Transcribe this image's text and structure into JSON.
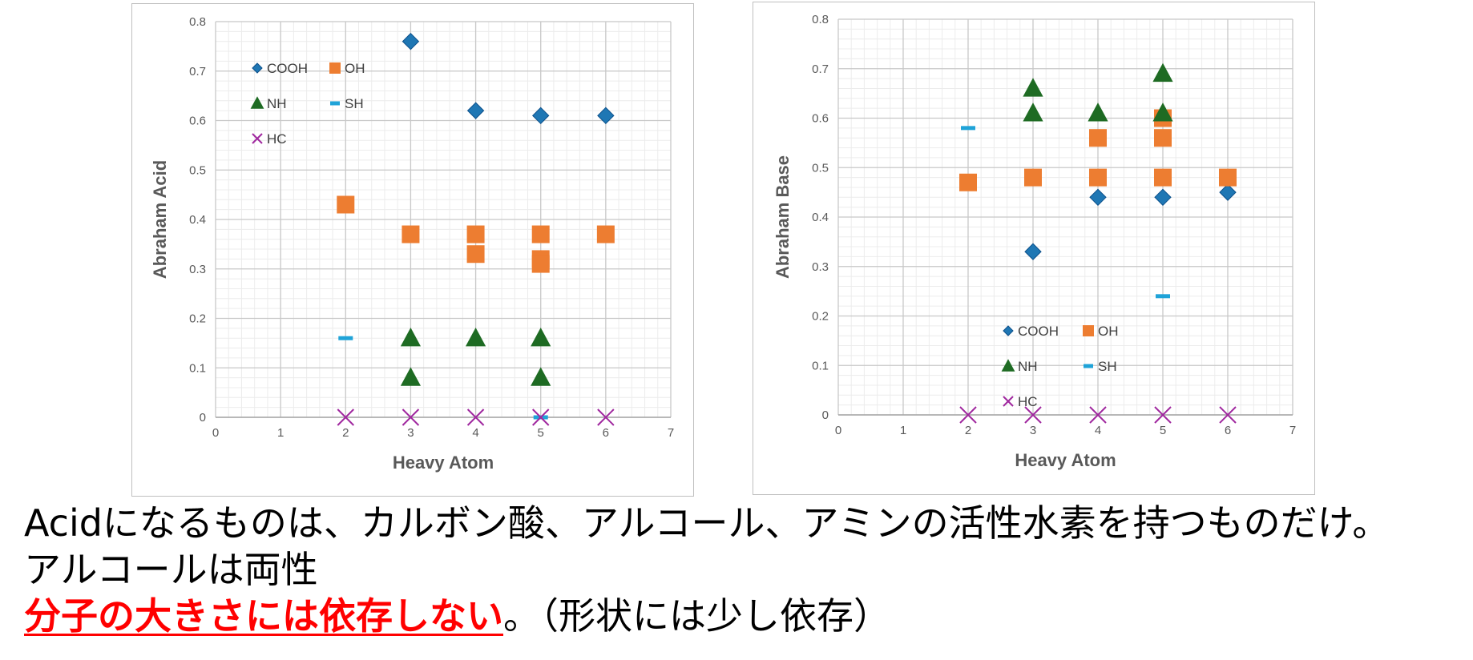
{
  "chart_data": [
    {
      "type": "scatter",
      "title": "",
      "xlabel": "Heavy Atom",
      "ylabel": "Abraham Acid",
      "xlim": [
        0,
        7
      ],
      "ylim": [
        0,
        0.8
      ],
      "x_ticks": [
        "0",
        "1",
        "2",
        "3",
        "4",
        "5",
        "6",
        "7"
      ],
      "y_ticks": [
        "0",
        "0.1",
        "0.2",
        "0.3",
        "0.4",
        "0.5",
        "0.6",
        "0.7",
        "0.8"
      ],
      "grid": true,
      "legend_position": "top-left",
      "series": [
        {
          "name": "COOH",
          "marker": "diamond",
          "color": "#1f77b4",
          "points": [
            [
              3,
              0.76
            ],
            [
              4,
              0.62
            ],
            [
              5,
              0.61
            ],
            [
              6,
              0.61
            ]
          ]
        },
        {
          "name": "OH",
          "marker": "square",
          "color": "#ed7d31",
          "points": [
            [
              2,
              0.43
            ],
            [
              3,
              0.37
            ],
            [
              4,
              0.37
            ],
            [
              4,
              0.33
            ],
            [
              5,
              0.37
            ],
            [
              5,
              0.32
            ],
            [
              5,
              0.31
            ],
            [
              6,
              0.37
            ]
          ]
        },
        {
          "name": "NH",
          "marker": "triangle",
          "color": "#1e6b23",
          "points": [
            [
              3,
              0.16
            ],
            [
              3,
              0.08
            ],
            [
              4,
              0.16
            ],
            [
              5,
              0.16
            ],
            [
              5,
              0.08
            ]
          ]
        },
        {
          "name": "SH",
          "marker": "dash",
          "color": "#1fa3d8",
          "points": [
            [
              2,
              0.16
            ],
            [
              5,
              0.0
            ]
          ]
        },
        {
          "name": "HC",
          "marker": "x",
          "color": "#a0289f",
          "points": [
            [
              2,
              0
            ],
            [
              3,
              0
            ],
            [
              4,
              0
            ],
            [
              5,
              0
            ],
            [
              6,
              0
            ]
          ]
        }
      ]
    },
    {
      "type": "scatter",
      "title": "",
      "xlabel": "Heavy Atom",
      "ylabel": "Abraham Base",
      "xlim": [
        0,
        7
      ],
      "ylim": [
        0,
        0.8
      ],
      "x_ticks": [
        "0",
        "1",
        "2",
        "3",
        "4",
        "5",
        "6",
        "7"
      ],
      "y_ticks": [
        "0",
        "0.1",
        "0.2",
        "0.3",
        "0.4",
        "0.5",
        "0.6",
        "0.7",
        "0.8"
      ],
      "grid": true,
      "legend_position": "bottom-center",
      "series": [
        {
          "name": "COOH",
          "marker": "diamond",
          "color": "#1f77b4",
          "points": [
            [
              3,
              0.33
            ],
            [
              4,
              0.44
            ],
            [
              5,
              0.44
            ],
            [
              6,
              0.45
            ]
          ]
        },
        {
          "name": "OH",
          "marker": "square",
          "color": "#ed7d31",
          "points": [
            [
              2,
              0.47
            ],
            [
              3,
              0.48
            ],
            [
              4,
              0.48
            ],
            [
              4,
              0.56
            ],
            [
              5,
              0.48
            ],
            [
              5,
              0.56
            ],
            [
              5,
              0.6
            ],
            [
              6,
              0.48
            ]
          ]
        },
        {
          "name": "NH",
          "marker": "triangle",
          "color": "#1e6b23",
          "points": [
            [
              3,
              0.66
            ],
            [
              3,
              0.61
            ],
            [
              4,
              0.61
            ],
            [
              5,
              0.69
            ],
            [
              5,
              0.61
            ]
          ]
        },
        {
          "name": "SH",
          "marker": "dash",
          "color": "#1fa3d8",
          "points": [
            [
              2,
              0.58
            ],
            [
              5,
              0.24
            ]
          ]
        },
        {
          "name": "HC",
          "marker": "x",
          "color": "#a0289f",
          "points": [
            [
              2,
              0
            ],
            [
              3,
              0
            ],
            [
              4,
              0
            ],
            [
              5,
              0
            ],
            [
              6,
              0
            ]
          ]
        }
      ]
    }
  ],
  "caption": {
    "line1": "Acidになるものは、カルボン酸、アルコール、アミンの活性水素を持つものだけ。",
    "line2": "アルコールは両性",
    "line3_emphasis": "分子の大きさには依存しない",
    "line3_rest": "。（形状には少し依存）"
  }
}
